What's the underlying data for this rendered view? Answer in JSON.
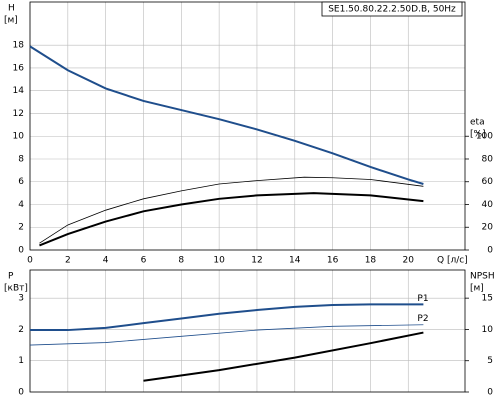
{
  "chart_data": [
    {
      "type": "line",
      "title": "SE1.50.80.22.2.50D.B, 50Hz",
      "ylabel": "H",
      "yunit": "[м]",
      "y2label": "eta",
      "y2unit": "[%]",
      "xlabel": "Q [л/с]",
      "xlim": [
        0,
        23
      ],
      "xticks": [
        0,
        2,
        4,
        6,
        8,
        10,
        12,
        14,
        16,
        18,
        20
      ],
      "ylim": [
        0,
        21.8
      ],
      "yticks": [
        0,
        2,
        4,
        6,
        8,
        10,
        12,
        14,
        16,
        18
      ],
      "y2lim": [
        0,
        218
      ],
      "y2ticks": [
        0,
        20,
        40,
        60,
        80,
        100
      ],
      "grid": true,
      "xtick_labels": true,
      "series": [
        {
          "color": "#1f4e8c",
          "width": 2,
          "x": [
            0,
            2,
            4,
            6,
            8,
            10,
            12,
            14,
            16,
            18,
            20,
            20.8
          ],
          "values": [
            17.9,
            15.8,
            14.2,
            13.1,
            12.3,
            11.5,
            10.6,
            9.6,
            8.5,
            7.3,
            6.2,
            5.8
          ]
        },
        {
          "color": "#000000",
          "width": 0.8,
          "axis": "y2",
          "x": [
            0.5,
            2,
            4,
            6,
            8,
            10,
            12,
            14.5,
            16,
            18,
            20.8
          ],
          "values": [
            6,
            22,
            35,
            45,
            52,
            58,
            61,
            64,
            63.5,
            62,
            56
          ]
        },
        {
          "color": "#000000",
          "width": 2,
          "axis": "y2",
          "x": [
            0.5,
            2,
            4,
            6,
            8,
            10,
            12,
            15,
            18,
            20.8
          ],
          "values": [
            4,
            14,
            25,
            34,
            40,
            45,
            48,
            50,
            48,
            43
          ]
        }
      ]
    },
    {
      "type": "line",
      "ylabel": "P",
      "yunit": "[кВт]",
      "y2label": "NPSH",
      "y2unit": "[м]",
      "xlim": [
        0,
        23
      ],
      "xticks": [
        0,
        2,
        4,
        6,
        8,
        10,
        12,
        14,
        16,
        18,
        20
      ],
      "ylim": [
        0,
        3.9
      ],
      "yticks": [
        0,
        1,
        2,
        3
      ],
      "y2lim": [
        0,
        19.5
      ],
      "y2ticks": [
        0,
        5,
        10,
        15
      ],
      "grid": true,
      "xtick_labels": false,
      "series": [
        {
          "name": "P1",
          "color": "#1f4e8c",
          "width": 2,
          "x": [
            0,
            2,
            4,
            6,
            8,
            10,
            12,
            14,
            16,
            18,
            20.8
          ],
          "values": [
            1.98,
            1.98,
            2.05,
            2.2,
            2.35,
            2.5,
            2.62,
            2.72,
            2.78,
            2.8,
            2.8
          ]
        },
        {
          "name": "P2",
          "color": "#1f4e8c",
          "width": 0.8,
          "x": [
            0,
            4,
            8,
            12,
            16,
            20.8
          ],
          "values": [
            1.5,
            1.58,
            1.78,
            1.98,
            2.1,
            2.15
          ]
        },
        {
          "color": "#000000",
          "width": 2,
          "axis": "y2",
          "x": [
            6,
            10,
            14,
            18,
            20.8
          ],
          "values": [
            1.8,
            3.5,
            5.5,
            7.8,
            9.5
          ]
        }
      ]
    }
  ]
}
